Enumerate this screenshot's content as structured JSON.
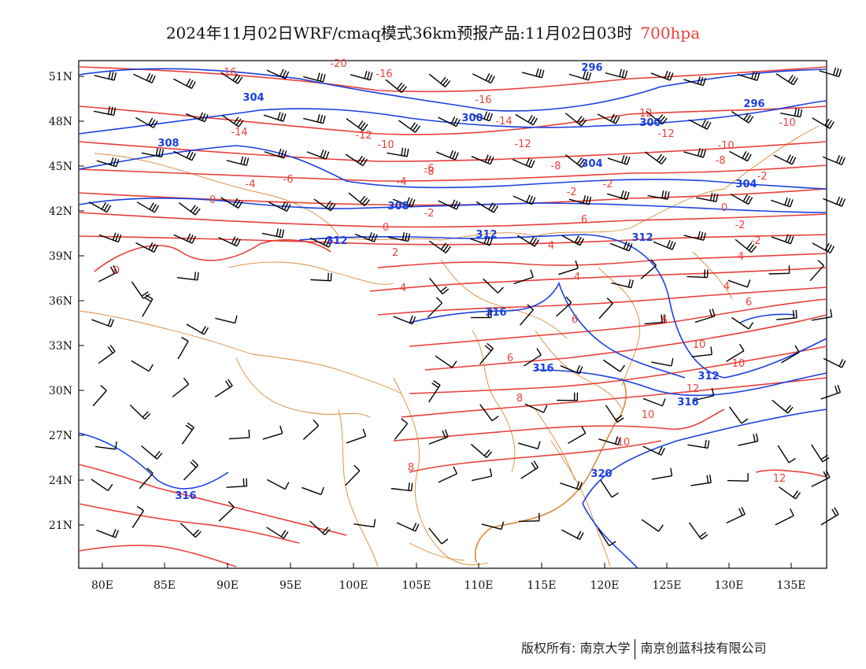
{
  "title": {
    "main": "2024年11月02日WRF/cmaq模式36km预报产品:11月02日03时",
    "level": "700hpa"
  },
  "axes": {
    "lon_labels": [
      "80E",
      "85E",
      "90E",
      "95E",
      "100E",
      "105E",
      "110E",
      "115E",
      "120E",
      "125E",
      "130E",
      "135E"
    ],
    "lat_labels": [
      "51N",
      "48N",
      "45N",
      "42N",
      "39N",
      "36N",
      "33N",
      "30N",
      "27N",
      "24N",
      "21N"
    ]
  },
  "contour_labels": {
    "temperature": [
      "-20",
      "-16",
      "-16",
      "-16",
      "-14",
      "-14",
      "-12",
      "-12",
      "-12",
      "-12",
      "-10",
      "-10",
      "-10",
      "-8",
      "-8",
      "-8",
      "-6",
      "-6",
      "-4",
      "-4",
      "-2",
      "-2",
      "-2",
      "-2",
      "0",
      "0",
      "0",
      "0",
      "-2",
      "-2",
      "2",
      "4",
      "4",
      "4",
      "4",
      "4",
      "6",
      "6",
      "6",
      "6",
      "6",
      "8",
      "8",
      "10",
      "10",
      "10",
      "10",
      "12",
      "12"
    ],
    "height": [
      "296",
      "296",
      "300",
      "300",
      "304",
      "304",
      "304",
      "308",
      "308",
      "312",
      "312",
      "312",
      "312",
      "316",
      "316",
      "316",
      "316",
      "320"
    ]
  },
  "colors": {
    "temperature": "#e8403a",
    "height": "#1a3fe0",
    "boundary": "#d98a3a",
    "wind": "#000000"
  },
  "footer": {
    "copyright": "版权所有: 南京大学",
    "company": "南京创蓝科技有限公司"
  }
}
